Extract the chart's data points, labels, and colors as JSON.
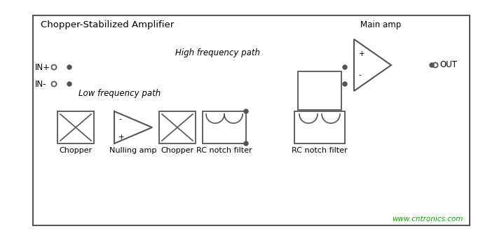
{
  "title": "Chopper-Stabilized Amplifier",
  "label_hf": "High frequency path",
  "label_lf": "Low frequency path",
  "label_main_amp": "Main amp",
  "label_chopper1": "Chopper",
  "label_nulling_amp": "Nulling amp",
  "label_chopper2": "Chopper",
  "label_rc_notch1": "RC notch filter",
  "label_rc_notch2": "RC notch filter",
  "label_in_plus": "IN+",
  "label_in_minus": "IN-",
  "label_out": "OUT",
  "watermark": "www.cntronics.com",
  "bg_color": "#ffffff",
  "line_color": "#555555",
  "watermark_color": "#00aa00",
  "figsize": [
    6.99,
    3.4
  ],
  "dpi": 100
}
